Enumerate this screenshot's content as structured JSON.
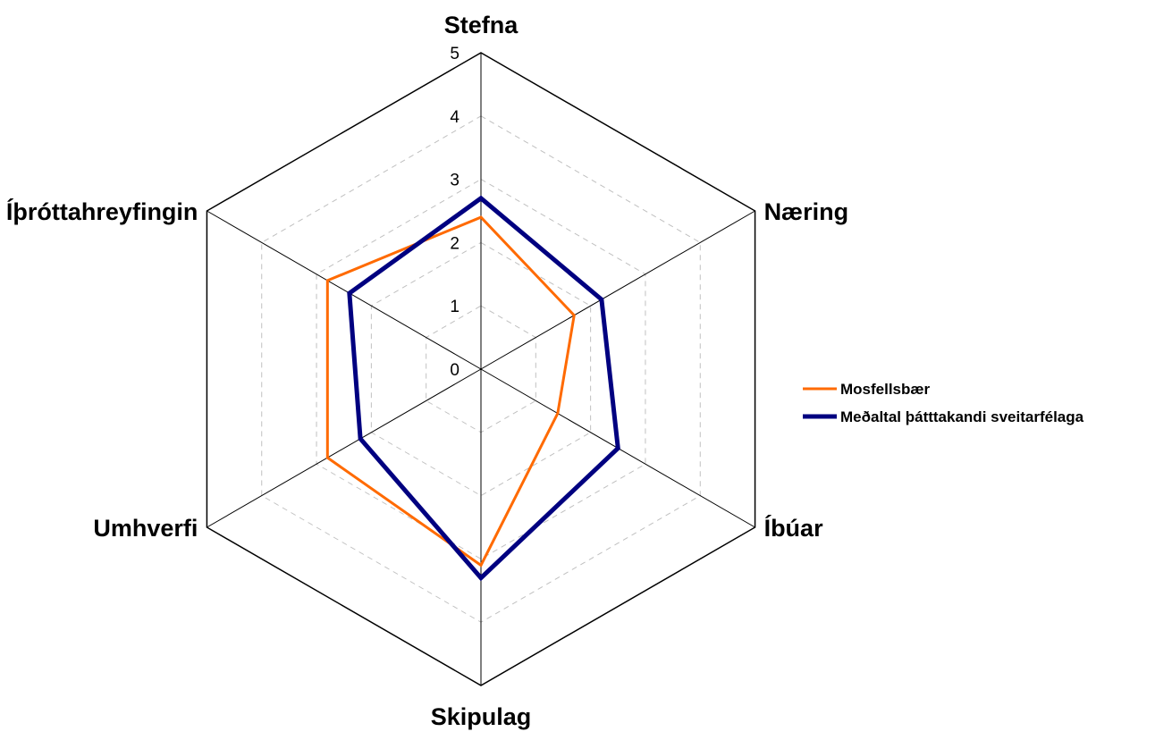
{
  "chart_data": {
    "type": "radar",
    "categories": [
      "Stefna",
      "Næring",
      "Íbúar",
      "Skipulag",
      "Umhverfi",
      "Íþróttahreyfingin"
    ],
    "rlim": [
      0,
      5
    ],
    "ticks": [
      "0",
      "1",
      "2",
      "3",
      "4",
      "5"
    ],
    "grid": true,
    "legend_position": "right",
    "series": [
      {
        "name": "Mosfellsbær",
        "color": "#ff6a00",
        "values": [
          2.4,
          1.7,
          1.4,
          3.1,
          2.8,
          2.8
        ]
      },
      {
        "name": "Meðaltal þátttakandi sveitarfélaga",
        "color": "#000080",
        "values": [
          2.7,
          2.2,
          2.5,
          3.3,
          2.2,
          2.4
        ]
      }
    ]
  }
}
